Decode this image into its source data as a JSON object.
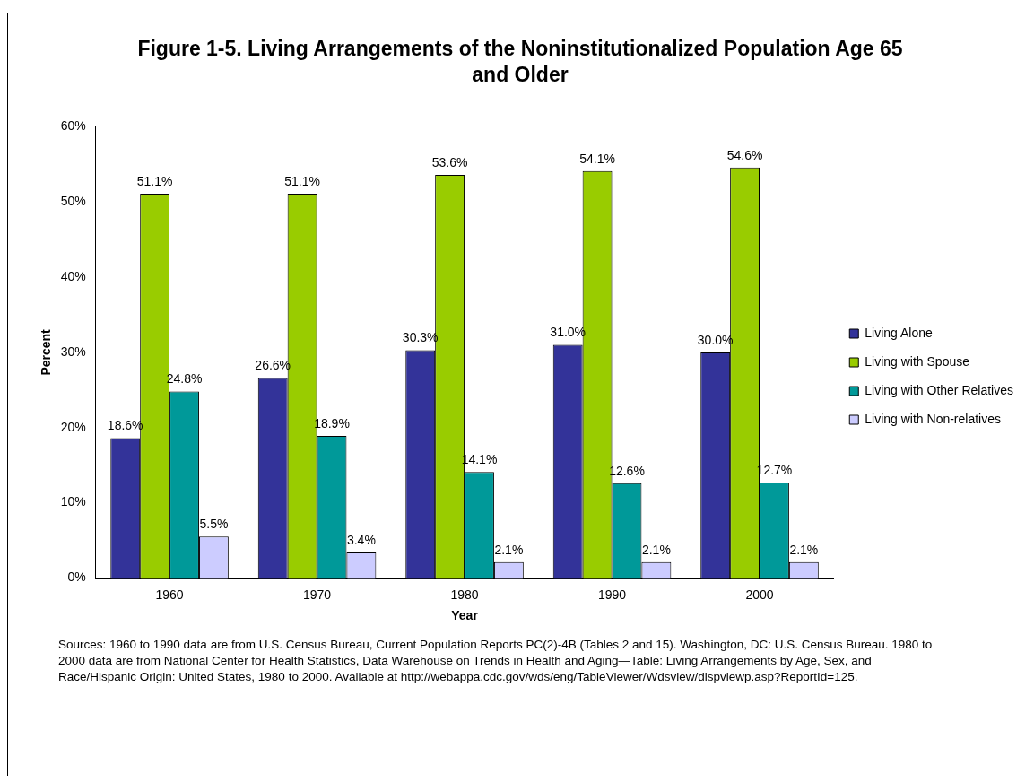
{
  "chart_data": {
    "type": "bar",
    "title": "Figure 1-5. Living Arrangements of the Noninstitutionalized Population Age 65 and Older",
    "xlabel": "Year",
    "ylabel": "Percent",
    "categories": [
      "1960",
      "1970",
      "1980",
      "1990",
      "2000"
    ],
    "series": [
      {
        "name": "Living Alone",
        "color": "#333399",
        "values": [
          18.6,
          26.6,
          30.3,
          31.0,
          30.0
        ],
        "value_labels": [
          "18.6%",
          "26.6%",
          "30.3%",
          "31.0%",
          "30.0%"
        ]
      },
      {
        "name": "Living with Spouse",
        "color": "#99cc00",
        "values": [
          51.1,
          51.1,
          53.6,
          54.1,
          54.6
        ],
        "value_labels": [
          "51.1%",
          "51.1%",
          "53.6%",
          "54.1%",
          "54.6%"
        ]
      },
      {
        "name": "Living with Other Relatives",
        "color": "#009999",
        "values": [
          24.8,
          18.9,
          14.1,
          12.6,
          12.7
        ],
        "value_labels": [
          "24.8%",
          "18.9%",
          "14.1%",
          "12.6%",
          "12.7%"
        ]
      },
      {
        "name": "Living with Non-relatives",
        "color": "#ccccff",
        "values": [
          5.5,
          3.4,
          2.1,
          2.1,
          2.1
        ],
        "value_labels": [
          "5.5%",
          "3.4%",
          "2.1%",
          "2.1%",
          "2.1%"
        ]
      }
    ],
    "ylim": [
      0,
      60
    ],
    "yticks": [
      {
        "value": 0,
        "label": "0%"
      },
      {
        "value": 10,
        "label": "10%"
      },
      {
        "value": 20,
        "label": "20%"
      },
      {
        "value": 30,
        "label": "30%"
      },
      {
        "value": 40,
        "label": "40%"
      },
      {
        "value": 50,
        "label": "50%"
      },
      {
        "value": 60,
        "label": "60%"
      }
    ],
    "grid": false,
    "legend": "right",
    "annotations": [
      "Sources: 1960 to 1990 data are from U.S. Census Bureau, Current Population Reports PC(2)-4B (Tables 2 and 15). Washington, DC: U.S. Census Bureau. 1980 to 2000 data are from National Center for Health Statistics, Data Warehouse on Trends in Health and Aging—Table: Living Arrangements by Age, Sex, and Race/Hispanic Origin: United States, 1980 to 2000. Available at http://webappa.cdc.gov/wds/eng/TableViewer/Wdsview/dispviewp.asp?ReportId=125."
    ]
  }
}
